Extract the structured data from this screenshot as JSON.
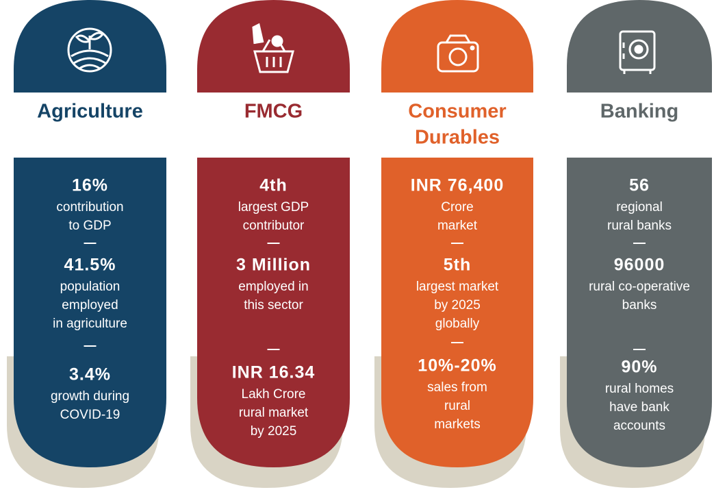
{
  "columns": [
    {
      "title": [
        "Agriculture"
      ],
      "stats": [
        {
          "value": "16%",
          "lines": [
            "contribution",
            "to GDP"
          ]
        },
        {
          "value": "41.5%",
          "lines": [
            "population",
            "employed",
            "in agriculture"
          ]
        },
        {
          "value": "3.4%",
          "lines": [
            "growth during",
            "COVID-19"
          ]
        }
      ]
    },
    {
      "title": [
        "FMCG"
      ],
      "stats": [
        {
          "value": "4th",
          "lines": [
            "largest GDP",
            "contributor"
          ]
        },
        {
          "value": "3 Million",
          "lines": [
            "employed in",
            "this sector"
          ]
        },
        {
          "value": "INR 16.34",
          "lines": [
            "Lakh Crore",
            "rural market",
            "by 2025"
          ]
        }
      ]
    },
    {
      "title": [
        "Consumer",
        "Durables"
      ],
      "stats": [
        {
          "value": "INR 76,400",
          "lines": [
            "Crore",
            "market"
          ]
        },
        {
          "value": "5th",
          "lines": [
            "largest market",
            "by  2025",
            "globally"
          ]
        },
        {
          "value": "10%-20%",
          "lines": [
            "sales from",
            "rural",
            "markets"
          ]
        }
      ]
    },
    {
      "title": [
        "Banking"
      ],
      "stats": [
        {
          "value": "56",
          "lines": [
            "regional",
            "rural  banks"
          ]
        },
        {
          "value": "96000",
          "lines": [
            "rural co-operative",
            "banks"
          ]
        },
        {
          "value": "90%",
          "lines": [
            "rural homes",
            "have bank",
            "accounts"
          ]
        }
      ]
    }
  ]
}
